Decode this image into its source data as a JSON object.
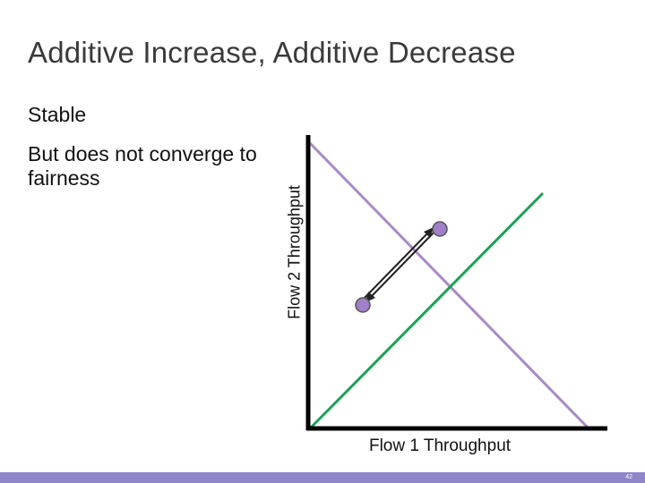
{
  "slide": {
    "title": "Additive Increase, Additive Decrease",
    "bullets": [
      "Stable",
      "But does not converge to fairness"
    ],
    "page_number": "42"
  },
  "diagram": {
    "x_axis_label": "Flow 1 Throughput",
    "y_axis_label": "Flow 2 Throughput",
    "lines": [
      {
        "name": "efficiency-line",
        "color": "#a98bc6"
      },
      {
        "name": "fairness-line",
        "color": "#1aa255"
      }
    ],
    "points_color": "#a27fc9",
    "arrow_color": "#222222"
  }
}
